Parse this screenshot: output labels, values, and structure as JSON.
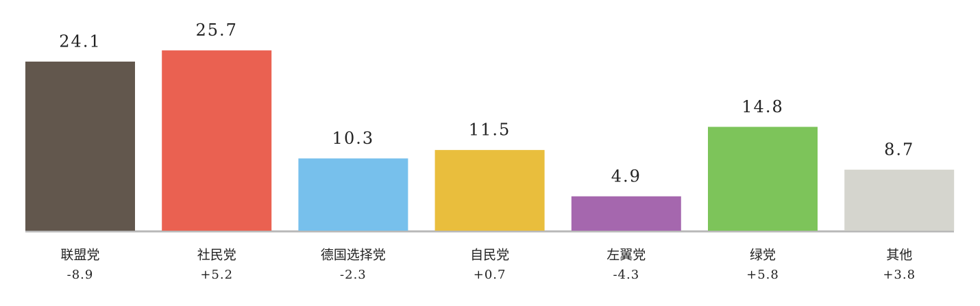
{
  "chart_data": {
    "type": "bar",
    "categories": [
      "联盟党",
      "社民党",
      "德国选择党",
      "自民党",
      "左翼党",
      "绿党",
      "其他"
    ],
    "values": [
      24.1,
      25.7,
      10.3,
      11.5,
      4.9,
      14.8,
      8.7
    ],
    "colors": [
      "#62574d",
      "#ea6151",
      "#77c0ec",
      "#e9be3d",
      "#a567ae",
      "#7dc45a",
      "#d5d5ce"
    ],
    "changes": {
      "values": [
        -8.9,
        5.2,
        -2.3,
        0.7,
        -4.3,
        5.8,
        3.8
      ],
      "value_labels": [
        "-8.9",
        "+5.2",
        "-2.3",
        "+0.7",
        "-4.3",
        "+5.8",
        "+3.8"
      ]
    }
  }
}
